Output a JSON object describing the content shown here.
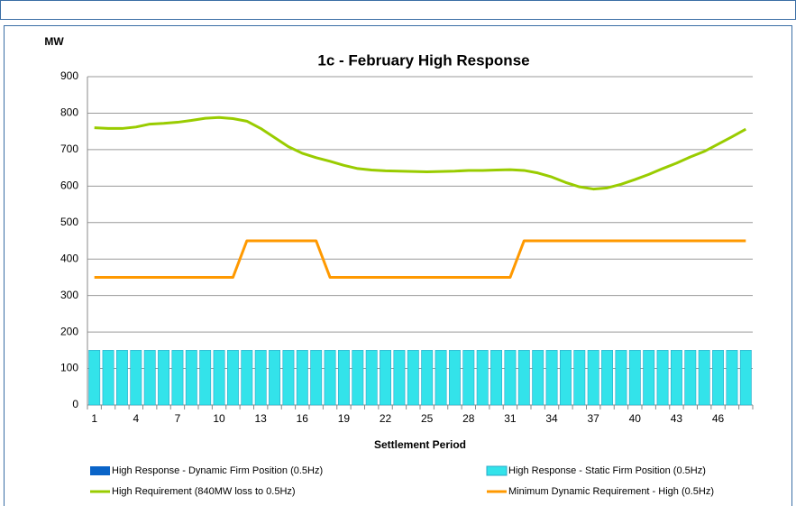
{
  "chart_data": {
    "type": "bar",
    "stacked": true,
    "title": "1c - February High Response",
    "y_label": "MW",
    "x_label": "Settlement Period",
    "categories": [
      1,
      null,
      null,
      4,
      null,
      null,
      7,
      null,
      null,
      10,
      null,
      null,
      13,
      null,
      null,
      16,
      null,
      null,
      19,
      null,
      null,
      22,
      null,
      null,
      25,
      null,
      null,
      28,
      null,
      null,
      31,
      null,
      null,
      34,
      null,
      null,
      37,
      null,
      null,
      40,
      null,
      null,
      43,
      null,
      null,
      46,
      null,
      null
    ],
    "ylim": [
      0,
      900
    ],
    "yticks": [
      0,
      100,
      200,
      300,
      400,
      500,
      600,
      700,
      800,
      900
    ],
    "grid": true,
    "series": [
      {
        "name": "High Response - Dynamic Firm Position (0.5Hz)",
        "color": "#0a64c8",
        "type": "bar",
        "values": [
          0,
          0,
          0,
          0,
          0,
          0,
          0,
          0,
          0,
          0,
          0,
          0,
          0,
          0,
          0,
          0,
          0,
          0,
          0,
          0,
          0,
          0,
          0,
          0,
          0,
          0,
          0,
          0,
          0,
          0,
          0,
          0,
          0,
          0,
          0,
          0,
          0,
          0,
          0,
          0,
          0,
          0,
          0,
          0,
          0,
          0,
          0,
          0
        ]
      },
      {
        "name": "High Response - Static Firm Position (0.5Hz)",
        "color": "#33e3ea",
        "type": "bar",
        "values": [
          150,
          150,
          150,
          150,
          150,
          150,
          150,
          150,
          150,
          150,
          150,
          150,
          150,
          150,
          150,
          150,
          150,
          150,
          150,
          150,
          150,
          150,
          150,
          150,
          150,
          150,
          150,
          150,
          150,
          150,
          150,
          150,
          150,
          150,
          150,
          150,
          150,
          150,
          150,
          150,
          150,
          150,
          150,
          150,
          150,
          150,
          150,
          150
        ]
      },
      {
        "name": "High Requirement (840MW loss to 0.5Hz)",
        "color": "#99cc00",
        "type": "line",
        "values": [
          760,
          758,
          758,
          762,
          770,
          772,
          775,
          780,
          786,
          788,
          785,
          778,
          758,
          733,
          708,
          690,
          678,
          668,
          657,
          648,
          644,
          642,
          641,
          640,
          639,
          640,
          641,
          643,
          643,
          644,
          645,
          643,
          636,
          625,
          610,
          598,
          592,
          595,
          605,
          618,
          632,
          648,
          663,
          680,
          695,
          715,
          735,
          756
        ]
      },
      {
        "name": "Minimum Dynamic Requirement - High (0.5Hz)",
        "color": "#ff9900",
        "type": "line",
        "values": [
          350,
          350,
          350,
          350,
          350,
          350,
          350,
          350,
          350,
          350,
          350,
          450,
          450,
          450,
          450,
          450,
          450,
          350,
          350,
          350,
          350,
          350,
          350,
          350,
          350,
          350,
          350,
          350,
          350,
          350,
          350,
          450,
          450,
          450,
          450,
          450,
          450,
          450,
          450,
          450,
          450,
          450,
          450,
          450,
          450,
          450,
          450,
          450
        ]
      }
    ]
  }
}
